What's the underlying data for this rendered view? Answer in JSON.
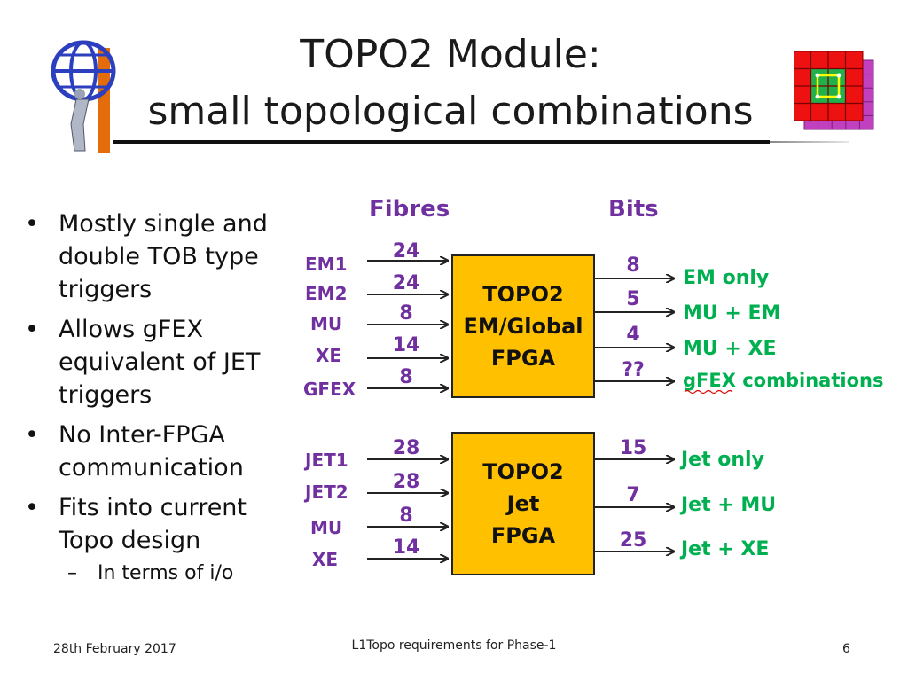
{
  "title": {
    "line1": "TOPO2 Module:",
    "line2": "small topological combinations"
  },
  "logos": {
    "left_icon": "atlas-experiment-logo",
    "right_icon": "calorimeter-grid-logo"
  },
  "bullets": [
    {
      "text": "Mostly single and double TOB type triggers"
    },
    {
      "text": "Allows gFEX equivalent of JET triggers"
    },
    {
      "text": "No Inter-FPGA communication"
    },
    {
      "text": "Fits into current Topo design",
      "sub": [
        "In terms of i/o"
      ]
    }
  ],
  "diagram": {
    "headers": {
      "fibres": "Fibres",
      "bits": "Bits"
    },
    "colors": {
      "label": "#7030a0",
      "output": "#00b050",
      "box_fill": "#ffc000",
      "arrow": "#222222"
    },
    "blocks": [
      {
        "name": "em-global",
        "box_lines": [
          "TOPO2",
          "EM/Global",
          "FPGA"
        ],
        "inputs": [
          {
            "label": "EM1",
            "fibres": "24"
          },
          {
            "label": "EM2",
            "fibres": "24"
          },
          {
            "label": "MU",
            "fibres": "8"
          },
          {
            "label": "XE",
            "fibres": "14"
          },
          {
            "label": "GFEX",
            "fibres": "8"
          }
        ],
        "outputs": [
          {
            "bits": "8",
            "label": "EM only"
          },
          {
            "bits": "5",
            "label": "MU + EM"
          },
          {
            "bits": "4",
            "label": "MU + XE"
          },
          {
            "bits": "??",
            "label": "gFEX combinations"
          }
        ]
      },
      {
        "name": "jet",
        "box_lines": [
          "TOPO2",
          "Jet",
          "FPGA"
        ],
        "inputs": [
          {
            "label": "JET1",
            "fibres": "28"
          },
          {
            "label": "JET2",
            "fibres": "28"
          },
          {
            "label": "MU",
            "fibres": "8"
          },
          {
            "label": "XE",
            "fibres": "14"
          }
        ],
        "outputs": [
          {
            "bits": "15",
            "label": "Jet only"
          },
          {
            "bits": "7",
            "label": "Jet + MU"
          },
          {
            "bits": "25",
            "label": "Jet + XE"
          }
        ]
      }
    ]
  },
  "footer": {
    "date": "28th February 2017",
    "center": "L1Topo requirements for Phase-1",
    "page": "6"
  }
}
